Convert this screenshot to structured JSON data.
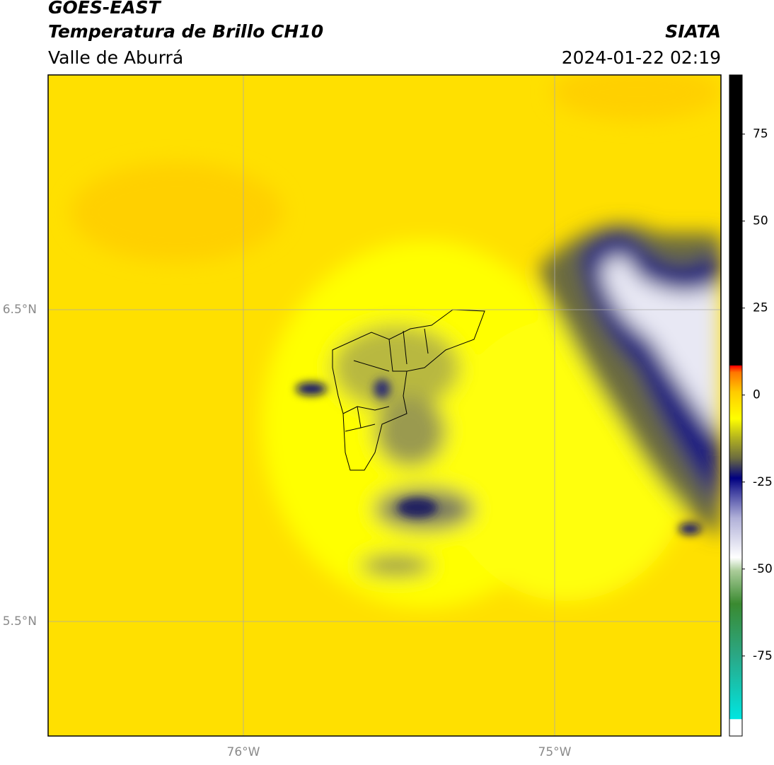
{
  "header": {
    "satellite": "GOES-EAST",
    "product": "Temperatura de Brillo CH10",
    "region": "Valle de Aburrá",
    "source": "SIATA",
    "datetime": "2024-01-22 02:19"
  },
  "map": {
    "lat_labels": [
      "6.5°N",
      "5.5°N"
    ],
    "lon_labels": [
      "76°W",
      "75°W"
    ]
  },
  "colorbar": {
    "lim": [
      -98,
      92
    ],
    "ticks": [
      75,
      50,
      25,
      0,
      -25,
      -50,
      -75
    ]
  }
}
